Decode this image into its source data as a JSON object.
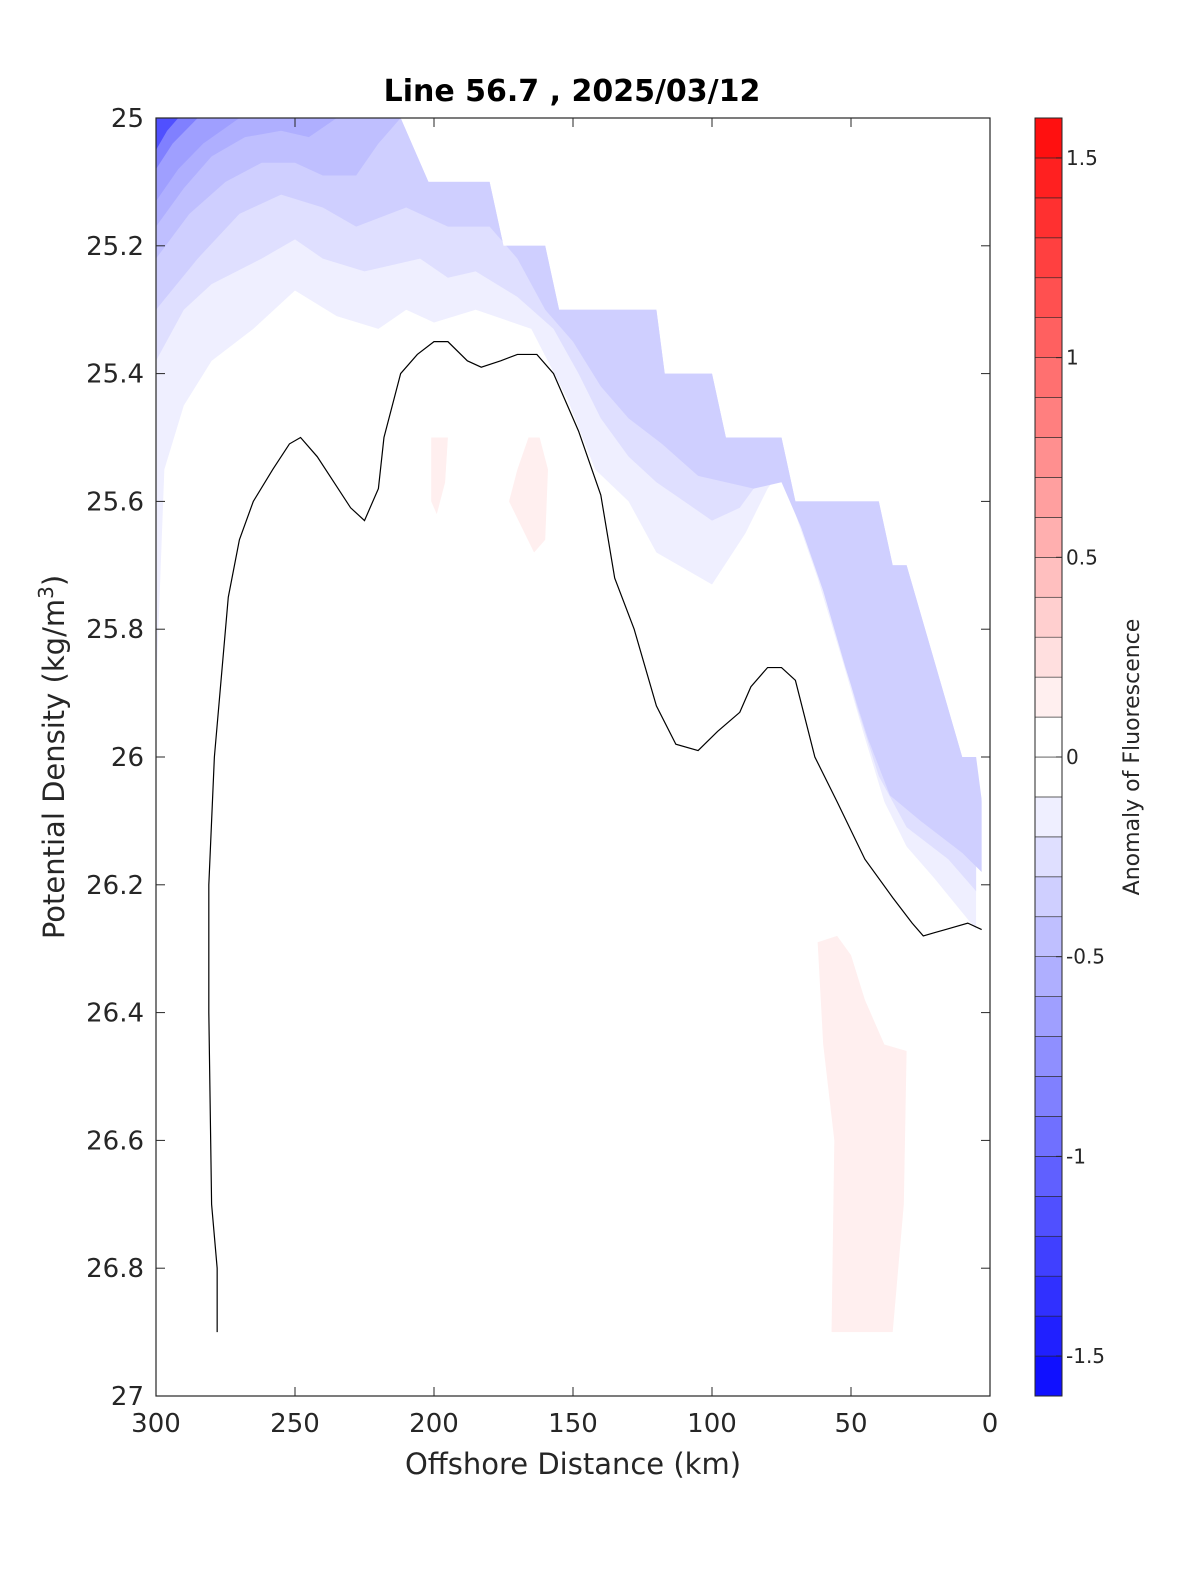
{
  "chart_data": {
    "type": "filled-contour",
    "title": "Line 56.7 , 2025/03/12",
    "xlabel": "Offshore Distance (km)",
    "ylabel": "Potential Density (kg/m",
    "ylabel_sup": "3",
    "ylabel_tail": ")",
    "x_reversed": true,
    "xlim": [
      0,
      300
    ],
    "ylim": [
      25,
      27
    ],
    "y_reversed": true,
    "x_ticks": [
      300,
      250,
      200,
      150,
      100,
      50,
      0
    ],
    "x_tick_labels": [
      "300",
      "250",
      "200",
      "150",
      "100",
      "50",
      "0"
    ],
    "y_ticks": [
      25,
      25.2,
      25.4,
      25.6,
      25.8,
      26,
      26.2,
      26.4,
      26.6,
      26.8,
      27
    ],
    "y_tick_labels": [
      "25",
      "25.2",
      "25.4",
      "25.6",
      "25.8",
      "26",
      "26.2",
      "26.4",
      "26.6",
      "26.8",
      "27"
    ],
    "colorbar": {
      "label": "Anomaly of Fluorescence",
      "range": [
        -1.6,
        1.6
      ],
      "step": 0.1,
      "ticks": [
        1.5,
        1,
        0.5,
        0,
        -0.5,
        -1,
        -1.5
      ],
      "tick_labels": [
        "1.5",
        "1",
        "0.5",
        "0",
        "-0.5",
        "-1",
        "-1.5"
      ],
      "colormap": "blue-white-red",
      "min_color": "#0000ff",
      "mid_color": "#ffffff",
      "max_color": "#ff0000"
    },
    "data_extent": {
      "note_free": true,
      "upper_boundary": [
        [
          300,
          25.0
        ],
        [
          212,
          25.0
        ],
        [
          202,
          25.1
        ],
        [
          180,
          25.1
        ],
        [
          175,
          25.2
        ],
        [
          160,
          25.2
        ],
        [
          155,
          25.3
        ],
        [
          120,
          25.3
        ],
        [
          117,
          25.4
        ],
        [
          100,
          25.4
        ],
        [
          95,
          25.5
        ],
        [
          75,
          25.5
        ],
        [
          70,
          25.6
        ],
        [
          40,
          25.6
        ],
        [
          35,
          25.7
        ],
        [
          30,
          25.7
        ],
        [
          10,
          26.0
        ],
        [
          5,
          26.0
        ],
        [
          2,
          26.1
        ],
        [
          0,
          26.1
        ]
      ],
      "bottom": 26.9
    },
    "negative_regions": [
      {
        "level": -0.1,
        "boundary": [
          [
            300,
            25.9
          ],
          [
            297,
            25.55
          ],
          [
            290,
            25.45
          ],
          [
            280,
            25.38
          ],
          [
            265,
            25.33
          ],
          [
            250,
            25.27
          ],
          [
            235,
            25.31
          ],
          [
            220,
            25.33
          ],
          [
            210,
            25.3
          ],
          [
            200,
            25.32
          ],
          [
            185,
            25.3
          ],
          [
            165,
            25.33
          ],
          [
            152,
            25.44
          ],
          [
            142,
            25.55
          ],
          [
            130,
            25.6
          ],
          [
            120,
            25.68
          ],
          [
            112,
            25.7
          ],
          [
            100,
            25.73
          ],
          [
            88,
            25.65
          ],
          [
            80,
            25.58
          ],
          [
            75,
            25.55
          ],
          [
            70,
            25.62
          ],
          [
            62,
            25.72
          ],
          [
            53,
            25.85
          ],
          [
            45,
            25.97
          ],
          [
            38,
            26.07
          ],
          [
            30,
            26.14
          ],
          [
            20,
            26.19
          ],
          [
            5,
            26.27
          ]
        ]
      },
      {
        "level": -0.2,
        "boundary": [
          [
            300,
            25.38
          ],
          [
            290,
            25.3
          ],
          [
            280,
            25.26
          ],
          [
            262,
            25.22
          ],
          [
            250,
            25.19
          ],
          [
            240,
            25.22
          ],
          [
            225,
            25.24
          ],
          [
            205,
            25.22
          ],
          [
            195,
            25.25
          ],
          [
            185,
            25.24
          ],
          [
            170,
            25.28
          ],
          [
            157,
            25.33
          ],
          [
            148,
            25.4
          ],
          [
            140,
            25.47
          ],
          [
            130,
            25.53
          ],
          [
            120,
            25.57
          ],
          [
            110,
            25.6
          ],
          [
            100,
            25.63
          ],
          [
            90,
            25.61
          ],
          [
            80,
            25.55
          ],
          [
            72,
            25.58
          ],
          [
            65,
            25.67
          ],
          [
            56,
            25.79
          ],
          [
            48,
            25.92
          ],
          [
            40,
            26.03
          ],
          [
            30,
            26.11
          ],
          [
            15,
            26.16
          ],
          [
            5,
            26.21
          ]
        ]
      },
      {
        "level": -0.3,
        "boundary": [
          [
            300,
            25.3
          ],
          [
            285,
            25.22
          ],
          [
            270,
            25.15
          ],
          [
            255,
            25.12
          ],
          [
            240,
            25.14
          ],
          [
            228,
            25.17
          ],
          [
            210,
            25.14
          ],
          [
            195,
            25.17
          ],
          [
            180,
            25.17
          ],
          [
            170,
            25.22
          ],
          [
            160,
            25.3
          ],
          [
            150,
            25.35
          ],
          [
            140,
            25.42
          ],
          [
            130,
            25.47
          ],
          [
            118,
            25.51
          ],
          [
            105,
            25.56
          ],
          [
            95,
            25.57
          ],
          [
            85,
            25.58
          ],
          [
            75,
            25.57
          ],
          [
            68,
            25.64
          ],
          [
            60,
            25.74
          ],
          [
            52,
            25.86
          ],
          [
            44,
            25.97
          ],
          [
            36,
            26.06
          ],
          [
            25,
            26.1
          ],
          [
            10,
            26.15
          ],
          [
            3,
            26.18
          ]
        ]
      },
      {
        "level": -0.4,
        "boundary": [
          [
            300,
            25.22
          ],
          [
            288,
            25.15
          ],
          [
            275,
            25.1
          ],
          [
            262,
            25.07
          ],
          [
            250,
            25.07
          ],
          [
            240,
            25.09
          ],
          [
            228,
            25.09
          ],
          [
            220,
            25.04
          ],
          [
            212,
            25.0
          ]
        ]
      },
      {
        "level": -0.5,
        "boundary": [
          [
            300,
            25.17
          ],
          [
            290,
            25.11
          ],
          [
            280,
            25.06
          ],
          [
            268,
            25.03
          ],
          [
            255,
            25.02
          ],
          [
            245,
            25.03
          ],
          [
            235,
            25.0
          ]
        ]
      },
      {
        "level": -0.6,
        "boundary": [
          [
            300,
            25.13
          ],
          [
            292,
            25.08
          ],
          [
            283,
            25.04
          ],
          [
            270,
            25.0
          ]
        ]
      },
      {
        "level": -0.8,
        "boundary": [
          [
            300,
            25.08
          ],
          [
            294,
            25.04
          ],
          [
            285,
            25.0
          ]
        ]
      },
      {
        "level": -1.1,
        "boundary": [
          [
            300,
            25.05
          ],
          [
            296,
            25.02
          ],
          [
            292,
            25.0
          ]
        ]
      }
    ],
    "positive_patches": [
      {
        "level": 0.1,
        "polygon": [
          [
            201,
            25.5
          ],
          [
            195,
            25.5
          ],
          [
            196,
            25.57
          ],
          [
            199,
            25.62
          ],
          [
            201,
            25.6
          ]
        ]
      },
      {
        "level": 0.1,
        "polygon": [
          [
            166,
            25.5
          ],
          [
            162,
            25.5
          ],
          [
            159,
            25.55
          ],
          [
            160,
            25.66
          ],
          [
            164,
            25.68
          ],
          [
            173,
            25.6
          ],
          [
            170,
            25.55
          ]
        ]
      },
      {
        "level": 0.1,
        "polygon": [
          [
            62,
            26.29
          ],
          [
            55,
            26.28
          ],
          [
            50,
            26.31
          ],
          [
            45,
            26.38
          ],
          [
            38,
            26.45
          ],
          [
            30,
            26.46
          ],
          [
            31,
            26.7
          ],
          [
            35,
            26.9
          ],
          [
            57,
            26.9
          ],
          [
            56,
            26.6
          ],
          [
            60,
            26.45
          ]
        ]
      }
    ],
    "zero_contour": {
      "level": 0,
      "points": [
        [
          278,
          26.9
        ],
        [
          278,
          26.8
        ],
        [
          280,
          26.7
        ],
        [
          281,
          26.4
        ],
        [
          281,
          26.2
        ],
        [
          279,
          26.0
        ],
        [
          277,
          25.9
        ],
        [
          274,
          25.75
        ],
        [
          270,
          25.66
        ],
        [
          265,
          25.6
        ],
        [
          258,
          25.55
        ],
        [
          252,
          25.51
        ],
        [
          248,
          25.5
        ],
        [
          242,
          25.53
        ],
        [
          236,
          25.57
        ],
        [
          230,
          25.61
        ],
        [
          225,
          25.63
        ],
        [
          220,
          25.58
        ],
        [
          218,
          25.5
        ],
        [
          212,
          25.4
        ],
        [
          206,
          25.37
        ],
        [
          200,
          25.35
        ],
        [
          195,
          25.35
        ],
        [
          188,
          25.38
        ],
        [
          183,
          25.39
        ],
        [
          176,
          25.38
        ],
        [
          170,
          25.37
        ],
        [
          163,
          25.37
        ],
        [
          157,
          25.4
        ],
        [
          152,
          25.45
        ],
        [
          148,
          25.49
        ],
        [
          140,
          25.59
        ],
        [
          135,
          25.72
        ],
        [
          128,
          25.8
        ],
        [
          120,
          25.92
        ],
        [
          113,
          25.98
        ],
        [
          105,
          25.99
        ],
        [
          98,
          25.96
        ],
        [
          90,
          25.93
        ],
        [
          86,
          25.89
        ],
        [
          80,
          25.86
        ],
        [
          75,
          25.86
        ],
        [
          70,
          25.88
        ],
        [
          63,
          26.0
        ],
        [
          55,
          26.07
        ],
        [
          45,
          26.16
        ],
        [
          35,
          26.22
        ],
        [
          28,
          26.26
        ],
        [
          24,
          26.28
        ],
        [
          20,
          26.275
        ],
        [
          16,
          26.27
        ],
        [
          8,
          26.26
        ],
        [
          3,
          26.27
        ]
      ]
    }
  }
}
